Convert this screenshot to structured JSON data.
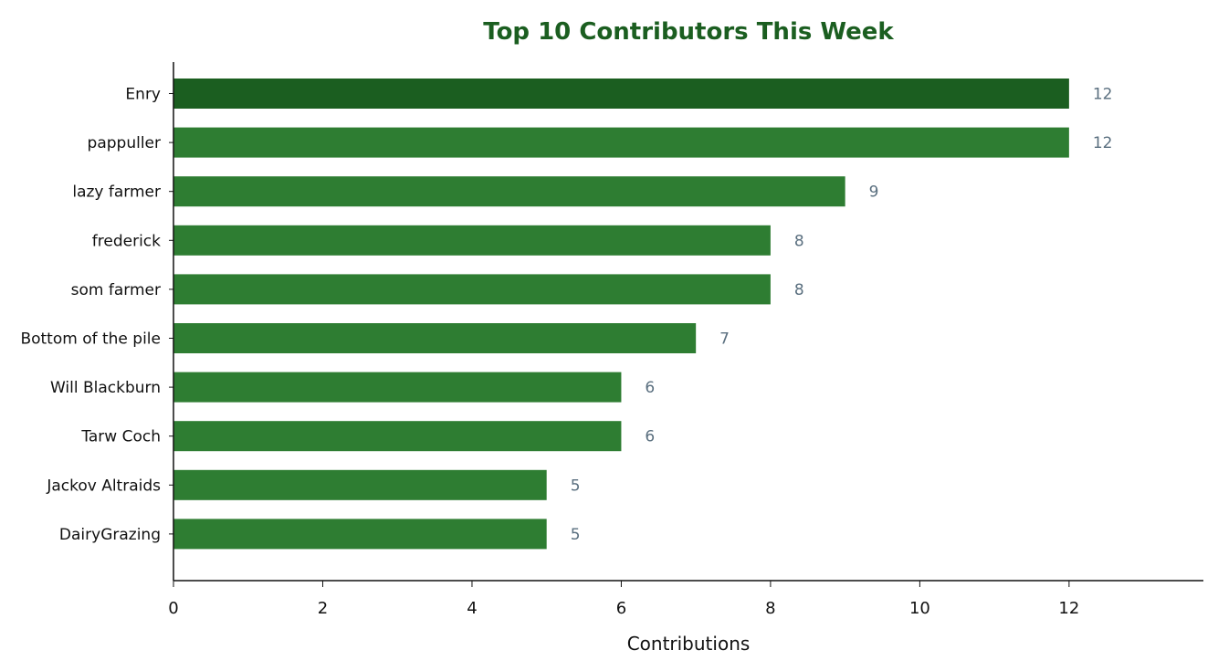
{
  "chart_data": {
    "type": "bar",
    "orientation": "horizontal",
    "title": "Top 10 Contributors This Week",
    "xlabel": "Contributions",
    "ylabel": "",
    "xlim": [
      0,
      13.8
    ],
    "xticks": [
      0,
      2,
      4,
      6,
      8,
      10,
      12
    ],
    "categories": [
      "Enry",
      "pappuller",
      "lazy farmer",
      "frederick",
      "som farmer",
      "Bottom of the pile",
      "Will Blackburn",
      "Tarw Coch",
      "Jackov Altraids",
      "DairyGrazing"
    ],
    "values": [
      12,
      12,
      9,
      8,
      8,
      7,
      6,
      6,
      5,
      5
    ],
    "data_labels": [
      "12",
      "12",
      "9",
      "8",
      "8",
      "7",
      "6",
      "6",
      "5",
      "5"
    ],
    "grid": false,
    "legend": "none"
  },
  "colors": {
    "title": "#1b5e20",
    "top_bar": "#1b5e20",
    "bar": "#2e7d32",
    "value_label": "#5a6f7f",
    "axis": "#111111"
  }
}
